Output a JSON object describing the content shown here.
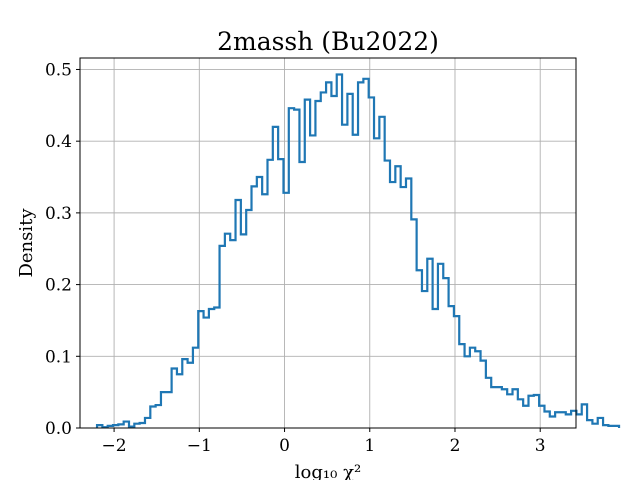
{
  "chart_data": {
    "type": "histogram",
    "title": "2massh (Bu2022)",
    "xlabel": "log₁₀ χ²",
    "ylabel": "Density",
    "xlim": [
      -2.4,
      3.42
    ],
    "ylim": [
      0.0,
      0.516
    ],
    "grid": true,
    "xticks": [
      -2,
      -1,
      0,
      1,
      2,
      3
    ],
    "xtick_labels": [
      "−2",
      "−1",
      "0",
      "1",
      "2",
      "3"
    ],
    "yticks": [
      0.0,
      0.1,
      0.2,
      0.3,
      0.4,
      0.5
    ],
    "ytick_labels": [
      "0.0",
      "0.1",
      "0.2",
      "0.3",
      "0.4",
      "0.5"
    ],
    "series": [
      {
        "color": "#1f77b4",
        "bin_start": -2.2,
        "bin_width": 0.0625,
        "values": [
          0.004,
          0.001,
          0.003,
          0.004,
          0.005,
          0.009,
          0.002,
          0.006,
          0.007,
          0.014,
          0.03,
          0.032,
          0.05,
          0.05,
          0.083,
          0.075,
          0.096,
          0.091,
          0.112,
          0.163,
          0.154,
          0.166,
          0.168,
          0.254,
          0.271,
          0.262,
          0.318,
          0.27,
          0.304,
          0.337,
          0.35,
          0.326,
          0.374,
          0.42,
          0.375,
          0.328,
          0.446,
          0.444,
          0.371,
          0.458,
          0.408,
          0.456,
          0.468,
          0.482,
          0.463,
          0.493,
          0.423,
          0.466,
          0.409,
          0.482,
          0.487,
          0.461,
          0.404,
          0.434,
          0.373,
          0.343,
          0.365,
          0.336,
          0.348,
          0.291,
          0.22,
          0.191,
          0.236,
          0.166,
          0.229,
          0.209,
          0.17,
          0.156,
          0.117,
          0.1,
          0.112,
          0.107,
          0.094,
          0.07,
          0.057,
          0.057,
          0.054,
          0.047,
          0.054,
          0.04,
          0.031,
          0.045,
          0.046,
          0.031,
          0.023,
          0.016,
          0.022,
          0.022,
          0.019,
          0.024,
          0.019,
          0.033,
          0.011,
          0.006,
          0.014,
          0.004,
          0.003,
          0.003
        ]
      }
    ]
  }
}
